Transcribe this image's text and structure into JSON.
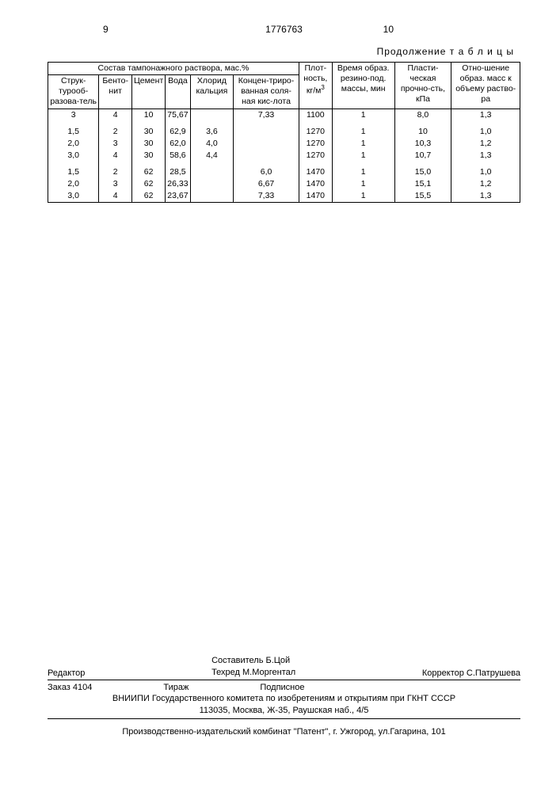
{
  "header": {
    "page_left": "9",
    "doc_number": "1776763",
    "page_right": "10"
  },
  "table": {
    "caption": "Продолжение т а б л и ц ы",
    "group_header": "Состав тампонажного раствора, мас.%",
    "columns": {
      "c1": "Струк-турооб-разова-тель",
      "c2": "Бенто-нит",
      "c3": "Цемент",
      "c4": "Вода",
      "c5": "Хлорид кальция",
      "c6": "Концен-триро-ванная соля-ная кис-лота",
      "c7_a": "Плот-ность,",
      "c7_b": "кг/м",
      "c7_sup": "3",
      "c8": "Время образ. резино-под. массы, мин",
      "c9": "Пласти-ческая прочно-сть, кПа",
      "c10": "Отно-шение образ. масс к объему раство-ра"
    },
    "rows": [
      [
        "3",
        "4",
        "10",
        "75,67",
        "",
        "7,33",
        "1100",
        "1",
        "8,0",
        "1,3"
      ],
      [
        "",
        "",
        "",
        "",
        "",
        "",
        "",
        "",
        "",
        ""
      ],
      [
        "1,5",
        "2",
        "30",
        "62,9",
        "3,6",
        "",
        "1270",
        "1",
        "10",
        "1,0"
      ],
      [
        "2,0",
        "3",
        "30",
        "62,0",
        "4,0",
        "",
        "1270",
        "1",
        "10,3",
        "1,2"
      ],
      [
        "3,0",
        "4",
        "30",
        "58,6",
        "4,4",
        "",
        "1270",
        "1",
        "10,7",
        "1,3"
      ],
      [
        "",
        "",
        "",
        "",
        "",
        "",
        "",
        "",
        "",
        ""
      ],
      [
        "1,5",
        "2",
        "62",
        "28,5",
        "",
        "6,0",
        "1470",
        "1",
        "15,0",
        "1,0"
      ],
      [
        "2,0",
        "3",
        "62",
        "26,33",
        "",
        "6,67",
        "1470",
        "1",
        "15,1",
        "1,2"
      ],
      [
        "3,0",
        "4",
        "62",
        "23,67",
        "",
        "7,33",
        "1470",
        "1",
        "15,5",
        "1,3"
      ]
    ]
  },
  "footer": {
    "editor_label": "Редактор",
    "compiler": "Составитель  Б.Цой",
    "techred": "Техред М.Моргентал",
    "corrector": "Корректор  С.Патрушева",
    "order": "Заказ 4104",
    "tirazh": "Тираж",
    "subscription": "Подписное",
    "inst1": "ВНИИПИ Государственного комитета по изобретениям и открытиям при ГКНТ СССР",
    "inst2": "113035, Москва, Ж-35, Раушская наб., 4/5",
    "print": "Производственно-издательский комбинат \"Патент\", г. Ужгород, ул.Гагарина, 101"
  }
}
